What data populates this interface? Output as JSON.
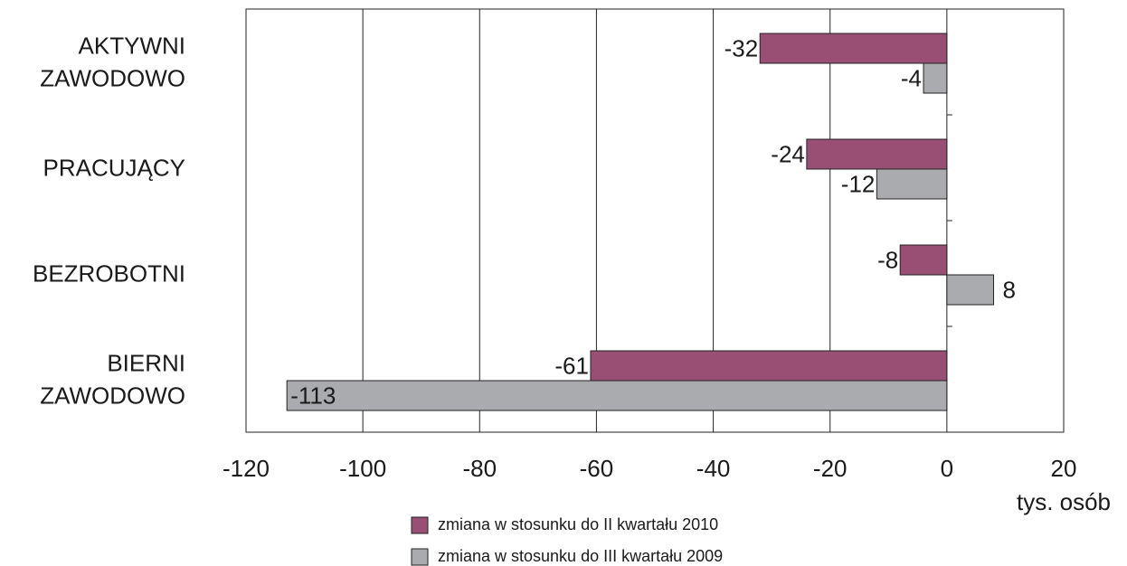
{
  "chart_data": {
    "type": "hbar",
    "categories": [
      "AKTYWNI ZAWODOWO",
      "PRACUJĄCY",
      "BEZROBOTNI",
      "BIERNI ZAWODOWO"
    ],
    "series": [
      {
        "name": "zmiana w stosunku do II kwartału 2010",
        "color": "#994e74",
        "values": [
          -32,
          -24,
          -8,
          -61
        ]
      },
      {
        "name": "zmiana w stosunku do III kwartału 2009",
        "color": "#a9abae",
        "values": [
          -4,
          -12,
          8,
          -113
        ]
      }
    ],
    "xlabel": "tys. osób",
    "xlim": [
      -120,
      20
    ],
    "xticks": [
      -120,
      -100,
      -80,
      -60,
      -40,
      -20,
      0,
      20
    ],
    "grid": true
  }
}
